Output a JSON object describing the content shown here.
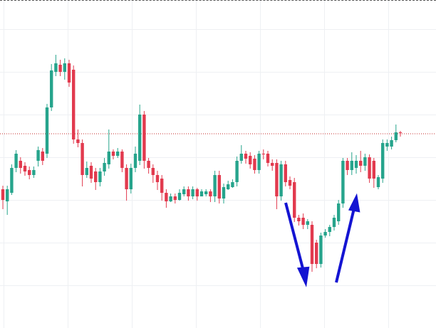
{
  "chart_data": {
    "type": "candlestick",
    "ylim": [
      0,
      461
    ],
    "up_color": "#26a48c",
    "down_color": "#e23a4e",
    "price_line": 274,
    "price_line_color": "#c62828",
    "open": [
      196,
      179,
      191,
      226,
      236,
      229,
      223,
      216,
      236,
      249,
      246,
      311,
      361,
      371,
      361,
      373,
      364,
      266,
      261,
      216,
      229,
      221,
      206,
      221,
      231,
      249,
      243,
      249,
      226,
      196,
      226,
      236,
      301,
      236,
      226,
      216,
      211,
      191,
      179,
      186,
      181,
      189,
      196,
      186,
      196,
      186,
      189,
      193,
      186,
      216,
      183,
      196,
      199,
      206,
      236,
      246,
      243,
      239,
      223,
      246,
      246,
      233,
      233,
      186,
      231,
      209,
      206,
      156,
      156,
      146,
      146,
      121,
      91,
      131,
      136,
      143,
      151,
      176,
      236,
      223,
      226,
      236,
      229,
      241,
      236,
      199,
      211,
      256,
      256,
      265,
      276
    ],
    "high": [
      201,
      201,
      231,
      251,
      241,
      234,
      228,
      228,
      256,
      254,
      316,
      372,
      385,
      378,
      380,
      378,
      370,
      280,
      266,
      235,
      234,
      226,
      226,
      240,
      280,
      252,
      254,
      252,
      231,
      232,
      256,
      315,
      306,
      240,
      231,
      222,
      216,
      196,
      190,
      190,
      196,
      200,
      200,
      200,
      198,
      196,
      196,
      196,
      222,
      222,
      204,
      208,
      210,
      242,
      258,
      250,
      248,
      244,
      250,
      252,
      250,
      238,
      238,
      236,
      236,
      214,
      212,
      160,
      162,
      154,
      151,
      125,
      135,
      140,
      146,
      160,
      181,
      240,
      240,
      248,
      244,
      250,
      246,
      245,
      240,
      216,
      266,
      266,
      270,
      287,
      278
    ],
    "low": [
      168,
      160,
      188,
      220,
      218,
      215,
      210,
      212,
      228,
      230,
      240,
      306,
      355,
      355,
      350,
      340,
      260,
      255,
      200,
      212,
      205,
      195,
      200,
      215,
      225,
      238,
      240,
      220,
      180,
      190,
      220,
      230,
      225,
      218,
      205,
      195,
      180,
      170,
      178,
      176,
      180,
      186,
      180,
      182,
      180,
      186,
      186,
      178,
      178,
      176,
      176,
      195,
      198,
      200,
      232,
      232,
      225,
      218,
      218,
      238,
      228,
      222,
      168,
      180,
      200,
      196,
      150,
      145,
      140,
      140,
      80,
      85,
      86,
      128,
      130,
      138,
      146,
      170,
      216,
      216,
      218,
      220,
      222,
      205,
      198,
      196,
      205,
      250,
      252,
      262,
      270
    ],
    "close": [
      181,
      196,
      226,
      246,
      226,
      221,
      216,
      223,
      251,
      236,
      311,
      363,
      373,
      361,
      373,
      346,
      266,
      261,
      216,
      226,
      211,
      206,
      221,
      233,
      249,
      243,
      249,
      226,
      196,
      226,
      246,
      301,
      236,
      226,
      216,
      206,
      191,
      179,
      186,
      181,
      191,
      196,
      186,
      196,
      186,
      193,
      193,
      186,
      216,
      183,
      199,
      203,
      206,
      236,
      246,
      239,
      231,
      223,
      246,
      245,
      233,
      229,
      186,
      231,
      206,
      201,
      156,
      151,
      146,
      151,
      91,
      91,
      131,
      136,
      143,
      156,
      176,
      236,
      223,
      236,
      236,
      229,
      241,
      211,
      211,
      213,
      261,
      261,
      265,
      276,
      275
    ]
  }
}
